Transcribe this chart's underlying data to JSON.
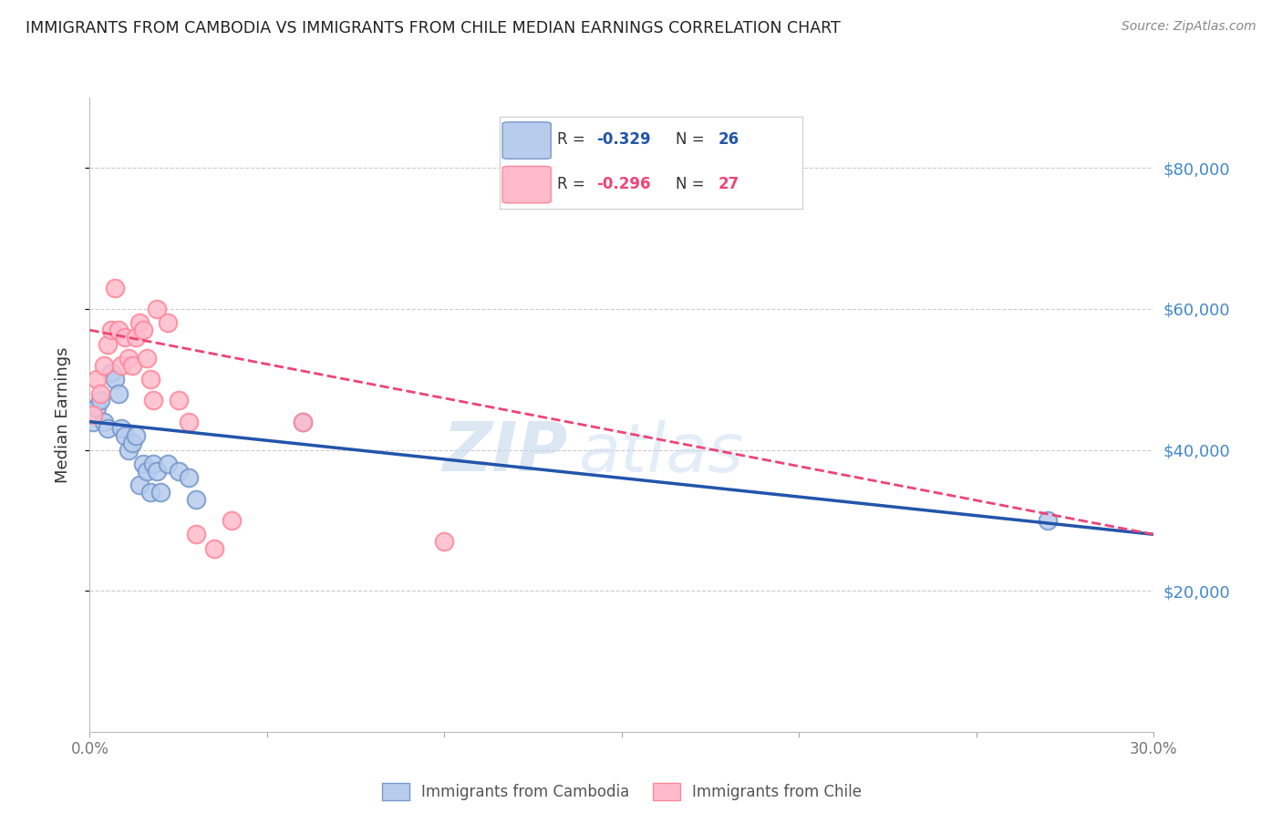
{
  "title": "IMMIGRANTS FROM CAMBODIA VS IMMIGRANTS FROM CHILE MEDIAN EARNINGS CORRELATION CHART",
  "source": "Source: ZipAtlas.com",
  "ylabel": "Median Earnings",
  "ytick_labels": [
    "$20,000",
    "$40,000",
    "$60,000",
    "$80,000"
  ],
  "ytick_values": [
    20000,
    40000,
    60000,
    80000
  ],
  "ylim": [
    0,
    90000
  ],
  "xlim": [
    0.0,
    0.3
  ],
  "watermark_part1": "ZIP",
  "watermark_part2": "atlas",
  "legend_bottom_labels": [
    "Immigrants from Cambodia",
    "Immigrants from Chile"
  ],
  "cambodia_color_face": "#b8ccee",
  "cambodia_color_edge": "#7799cc",
  "chile_color_face": "#ffbbcc",
  "chile_color_edge": "#ff8899",
  "cambodia_line_color": "#2255aa",
  "chile_line_color": "#ee4477",
  "background_color": "#ffffff",
  "grid_color": "#cccccc",
  "title_color": "#222222",
  "source_color": "#888888",
  "right_tick_color": "#4488cc",
  "legend_R_blue": "#2255aa",
  "legend_R_pink": "#ee4477",
  "legend_N_blue": "#2255aa",
  "legend_N_pink": "#ee4477",
  "cambodia_x": [
    0.001,
    0.002,
    0.003,
    0.004,
    0.005,
    0.006,
    0.007,
    0.008,
    0.009,
    0.01,
    0.011,
    0.012,
    0.013,
    0.014,
    0.015,
    0.016,
    0.017,
    0.018,
    0.019,
    0.02,
    0.022,
    0.025,
    0.028,
    0.03,
    0.06,
    0.27
  ],
  "cambodia_y": [
    44000,
    46000,
    47000,
    44000,
    43000,
    51000,
    50000,
    48000,
    43000,
    42000,
    40000,
    41000,
    42000,
    35000,
    38000,
    37000,
    34000,
    38000,
    37000,
    34000,
    38000,
    37000,
    36000,
    33000,
    44000,
    30000
  ],
  "chile_x": [
    0.001,
    0.002,
    0.003,
    0.004,
    0.005,
    0.006,
    0.007,
    0.008,
    0.009,
    0.01,
    0.011,
    0.012,
    0.013,
    0.014,
    0.015,
    0.016,
    0.017,
    0.018,
    0.019,
    0.022,
    0.025,
    0.028,
    0.03,
    0.035,
    0.04,
    0.06,
    0.1
  ],
  "chile_y": [
    45000,
    50000,
    48000,
    52000,
    55000,
    57000,
    63000,
    57000,
    52000,
    56000,
    53000,
    52000,
    56000,
    58000,
    57000,
    53000,
    50000,
    47000,
    60000,
    58000,
    47000,
    44000,
    28000,
    26000,
    30000,
    44000,
    27000
  ],
  "cam_line_x0": 0.0,
  "cam_line_x1": 0.3,
  "cam_line_y0": 44000,
  "cam_line_y1": 28000,
  "chi_line_x0": 0.0,
  "chi_line_x1": 0.3,
  "chi_line_y0": 57000,
  "chi_line_y1": 28000
}
